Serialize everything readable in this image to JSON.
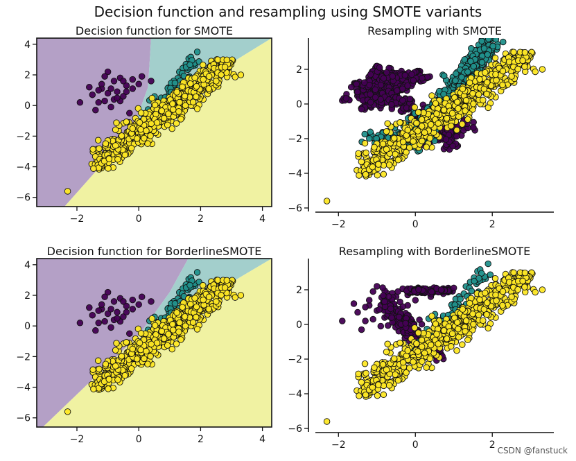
{
  "figure": {
    "suptitle": "Decision function and resampling using SMOTE variants",
    "watermark": "CSDN @fanstuck"
  },
  "colors": {
    "class0": "#440154",
    "class1": "#21918c",
    "class2": "#fde725",
    "region0": "#b4a0c6",
    "region1": "#a3cfcc",
    "region2": "#f0f2a2",
    "edge": "#111111"
  },
  "chart_data": [
    {
      "type": "scatter",
      "title": "Decision function for SMOTE",
      "xlim": [
        -3.3,
        4.3
      ],
      "ylim": [
        -6.6,
        4.4
      ],
      "xticks": [
        -2,
        0,
        2,
        4
      ],
      "yticks": [
        -6,
        -4,
        -2,
        0,
        2,
        4
      ],
      "spines": "all",
      "background": "decision_regions",
      "regions": [
        {
          "label": "class 0",
          "polygon": [
            [
              -3.3,
              -6.6
            ],
            [
              -2.4,
              -6.6
            ],
            [
              -0.2,
              -1.6
            ],
            [
              0.3,
              1.2
            ],
            [
              0.4,
              4.4
            ],
            [
              -3.3,
              4.4
            ]
          ]
        },
        {
          "label": "class 1",
          "polygon": [
            [
              0.4,
              4.4
            ],
            [
              0.3,
              1.2
            ],
            [
              -0.2,
              -1.6
            ],
            [
              0.6,
              -0.2
            ],
            [
              4.3,
              4.4
            ]
          ]
        },
        {
          "label": "class 2",
          "polygon": [
            [
              -2.4,
              -6.6
            ],
            [
              -0.2,
              -1.6
            ],
            [
              0.6,
              -0.2
            ],
            [
              4.3,
              4.4
            ],
            [
              4.3,
              -6.6
            ]
          ]
        }
      ],
      "series": [
        {
          "class": 0,
          "x": [
            -1.0,
            -1.2,
            -0.8,
            -0.6,
            -1.3,
            -0.4,
            -0.9,
            -1.1,
            -0.7,
            -0.2,
            -1.5,
            -1.9,
            -1.4,
            -0.5,
            0.1,
            -0.3,
            -1.0,
            -0.6,
            -1.2,
            -0.8,
            0.4,
            0.0,
            -1.6,
            -0.9,
            -0.4,
            -1.3,
            -0.7,
            -1.1,
            -0.2,
            -0.5
          ],
          "y": [
            2.2,
            1.1,
            1.6,
            0.3,
            0.2,
            1.3,
            -0.1,
            1.9,
            0.9,
            1.7,
            0.7,
            0.2,
            -0.3,
            0.6,
            1.9,
            -0.5,
            0.8,
            1.8,
            1.4,
            0.4,
            1.6,
            1.4,
            1.2,
            1.1,
            0.9,
            1.0,
            0.5,
            0.3,
            1.1,
            1.6
          ]
        },
        {
          "class": 1,
          "x_range": [
            0.0,
            2.0
          ],
          "y_range": [
            -1.8,
            3.5
          ],
          "pattern": "cluster_line"
        },
        {
          "class": 2,
          "x_range": [
            -1.5,
            3.0
          ],
          "y_range": [
            -4.2,
            3.0
          ],
          "pattern": "band",
          "outlier": [
            -2.3,
            -5.6
          ]
        }
      ]
    },
    {
      "type": "scatter",
      "title": "Resampling with SMOTE",
      "xlim": [
        -2.6,
        3.6
      ],
      "ylim": [
        -6.2,
        3.8
      ],
      "xticks": [
        -2,
        0,
        2
      ],
      "yticks": [
        -6,
        -4,
        -2,
        0,
        2
      ],
      "spines": "left_bottom",
      "series": [
        {
          "class": 0,
          "pattern": "dense_interpolated"
        },
        {
          "class": 1,
          "pattern": "dense_interpolated"
        },
        {
          "class": 2,
          "pattern": "band",
          "outlier": [
            -2.3,
            -5.6
          ]
        }
      ]
    },
    {
      "type": "scatter",
      "title": "Decision function for BorderlineSMOTE",
      "xlim": [
        -3.3,
        4.3
      ],
      "ylim": [
        -6.6,
        4.4
      ],
      "xticks": [
        -2,
        0,
        2,
        4
      ],
      "yticks": [
        -6,
        -4,
        -2,
        0,
        2,
        4
      ],
      "spines": "all",
      "background": "decision_regions",
      "regions": [
        {
          "label": "class 0",
          "polygon": [
            [
              -3.3,
              -6.6
            ],
            [
              -3.1,
              -6.6
            ],
            [
              0.0,
              -0.6
            ],
            [
              1.0,
              2.2
            ],
            [
              1.6,
              4.4
            ],
            [
              -3.3,
              4.4
            ]
          ]
        },
        {
          "label": "class 1",
          "polygon": [
            [
              1.6,
              4.4
            ],
            [
              1.0,
              2.2
            ],
            [
              0.0,
              -0.6
            ],
            [
              1.2,
              0.7
            ],
            [
              4.3,
              4.4
            ]
          ]
        },
        {
          "label": "class 2",
          "polygon": [
            [
              -3.1,
              -6.6
            ],
            [
              0.0,
              -0.6
            ],
            [
              1.2,
              0.7
            ],
            [
              4.3,
              4.4
            ],
            [
              4.3,
              -6.6
            ]
          ]
        }
      ],
      "series": [
        {
          "class": 0,
          "pattern": "same_as_original"
        },
        {
          "class": 1,
          "pattern": "cluster_line"
        },
        {
          "class": 2,
          "pattern": "band",
          "outlier": [
            -2.3,
            -5.6
          ]
        }
      ]
    },
    {
      "type": "scatter",
      "title": "Resampling with BorderlineSMOTE",
      "xlim": [
        -2.6,
        3.6
      ],
      "ylim": [
        -6.2,
        3.8
      ],
      "xticks": [
        -2,
        0,
        2
      ],
      "yticks": [
        -6,
        -4,
        -2,
        0,
        2
      ],
      "spines": "left_bottom",
      "series": [
        {
          "class": 0,
          "pattern": "border_interpolated"
        },
        {
          "class": 1,
          "pattern": "cluster_line"
        },
        {
          "class": 2,
          "pattern": "band",
          "outlier": [
            -2.3,
            -5.6
          ]
        }
      ]
    }
  ]
}
